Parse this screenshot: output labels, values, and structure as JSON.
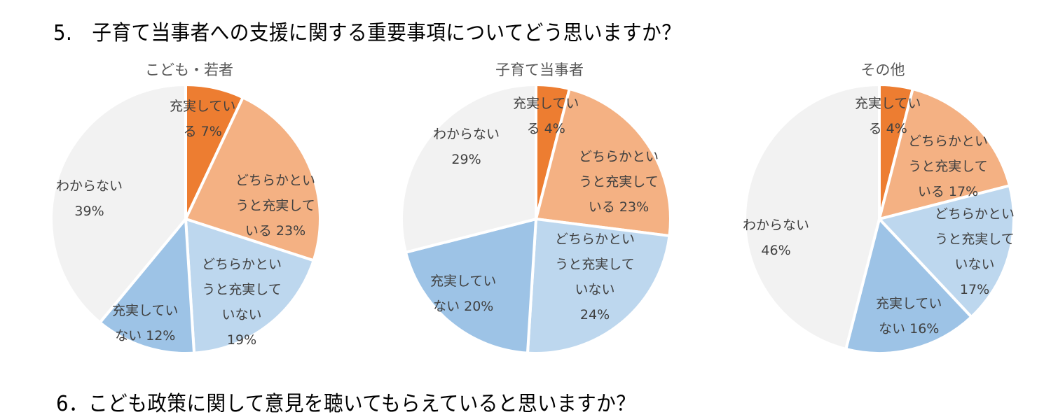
{
  "questions": {
    "q5": "5.　子育て当事者への支援に関する重要事項についてどう思いますか？",
    "q6": "6．こども政策に関して意見を聴いてもらえていると思いますか？"
  },
  "colors": {
    "jujitsu": "#ED7D31",
    "dochira_jujitsu": "#F4B183",
    "dochira_fujitsu": "#BDD7EE",
    "fujitsu": "#9DC3E6",
    "wakaranai": "#F2F2F2"
  },
  "charts": [
    {
      "title": "こども・若者",
      "labels": [
        {
          "l1": "充実してい",
          "l2": "る 7%"
        },
        {
          "l1": "どちらかとい",
          "l2": "うと充実して",
          "l3": "いる 23%"
        },
        {
          "l1": "どちらかとい",
          "l2": "うと充実して",
          "l3": "いない",
          "l4": "19%"
        },
        {
          "l1": "充実してい",
          "l2": "ない 12%"
        },
        {
          "l1": "わからない",
          "l2": "39%"
        }
      ]
    },
    {
      "title": "子育て当事者",
      "labels": [
        {
          "l1": "充実してい",
          "l2": "る 4%"
        },
        {
          "l1": "どちらかとい",
          "l2": "うと充実して",
          "l3": "いる 23%"
        },
        {
          "l1": "どちらかとい",
          "l2": "うと充実して",
          "l3": "いない",
          "l4": "24%"
        },
        {
          "l1": "充実してい",
          "l2": "ない 20%"
        },
        {
          "l1": "わからない",
          "l2": "29%"
        }
      ]
    },
    {
      "title": "その他",
      "labels": [
        {
          "l1": "充実してい",
          "l2": "る 4%"
        },
        {
          "l1": "どちらかとい",
          "l2": "うと充実して",
          "l3": "いる 17%"
        },
        {
          "l1": "どちらかとい",
          "l2": "うと充実して",
          "l3": "いない",
          "l4": "17%"
        },
        {
          "l1": "充実してい",
          "l2": "ない 16%"
        },
        {
          "l1": "わからない",
          "l2": "46%"
        }
      ]
    }
  ],
  "chart_data": [
    {
      "type": "pie",
      "title": "こども・若者",
      "categories": [
        "充実している",
        "どちらかというと充実している",
        "どちらかというと充実していない",
        "充実していない",
        "わからない"
      ],
      "values": [
        7,
        23,
        19,
        12,
        39
      ],
      "unit": "%"
    },
    {
      "type": "pie",
      "title": "子育て当事者",
      "categories": [
        "充実している",
        "どちらかというと充実している",
        "どちらかというと充実していない",
        "充実していない",
        "わからない"
      ],
      "values": [
        4,
        23,
        24,
        20,
        29
      ],
      "unit": "%"
    },
    {
      "type": "pie",
      "title": "その他",
      "categories": [
        "充実している",
        "どちらかというと充実している",
        "どちらかというと充実していない",
        "充実していない",
        "わからない"
      ],
      "values": [
        4,
        17,
        17,
        16,
        46
      ],
      "unit": "%"
    }
  ]
}
